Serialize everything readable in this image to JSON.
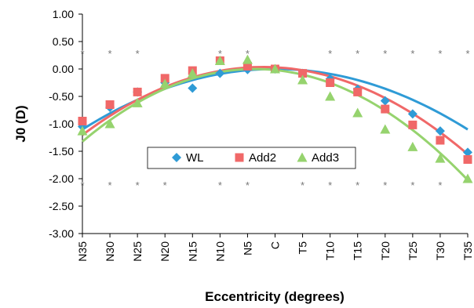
{
  "chart_data": {
    "type": "scatter",
    "title": "",
    "xlabel": "Eccentricity (degrees)",
    "ylabel": "J0 (D)",
    "categories": [
      "N35",
      "N30",
      "N25",
      "N20",
      "N15",
      "N10",
      "N5",
      "C",
      "T5",
      "T10",
      "T15",
      "T20",
      "T25",
      "T30",
      "T35"
    ],
    "ylim": [
      -3.0,
      1.0
    ],
    "yticks": [
      "1.00",
      "0.50",
      "0.00",
      "-0.50",
      "-1.00",
      "-1.50",
      "-2.00",
      "-2.50",
      "-3.00"
    ],
    "ytick_values": [
      1.0,
      0.5,
      0.0,
      -0.5,
      -1.0,
      -1.5,
      -2.0,
      -2.5,
      -3.0
    ],
    "grid": false,
    "legend": "center",
    "series": [
      {
        "name": "WL",
        "color": "#2f9bd6",
        "marker": "diamond",
        "values": [
          -1.05,
          -0.7,
          -0.42,
          -0.25,
          -0.35,
          -0.08,
          -0.01,
          0.0,
          -0.08,
          -0.18,
          -0.37,
          -0.58,
          -0.82,
          -1.13,
          -1.52
        ],
        "trend": [
          -0.0009,
          0.0,
          0.0
        ]
      },
      {
        "name": "Add2",
        "color": "#f06868",
        "marker": "square",
        "values": [
          -0.95,
          -0.65,
          -0.42,
          -0.17,
          -0.03,
          0.15,
          0.05,
          0.0,
          -0.08,
          -0.25,
          -0.42,
          -0.73,
          -1.02,
          -1.3,
          -1.65
        ],
        "trend": [
          -0.00115,
          -0.005,
          0.03
        ]
      },
      {
        "name": "Add3",
        "color": "#96d36e",
        "marker": "triangle",
        "values": [
          -1.13,
          -1.0,
          -0.62,
          -0.27,
          -0.08,
          0.15,
          0.17,
          0.0,
          -0.2,
          -0.5,
          -0.8,
          -1.1,
          -1.42,
          -1.63,
          -2.0
        ],
        "trend": [
          -0.00135,
          -0.01,
          -0.02
        ]
      }
    ],
    "annotations": {
      "marker": "*",
      "top_row_y": 0.33,
      "top_row_categories": [
        "N35",
        "N30",
        "N25",
        "N10",
        "N5",
        "T10",
        "T15",
        "T20",
        "T25",
        "T30",
        "T35"
      ],
      "bottom_row_y": -2.07,
      "bottom_row_categories": [
        "N35",
        "N30",
        "N25",
        "N20",
        "N10",
        "N5",
        "T5",
        "T10",
        "T15",
        "T20",
        "T25",
        "T30"
      ]
    }
  }
}
